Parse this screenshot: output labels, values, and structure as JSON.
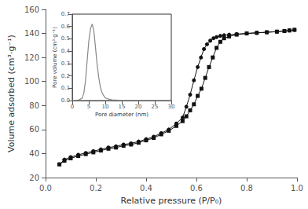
{
  "chart_data": [
    {
      "type": "line",
      "xlabel": "Relative pressure (P/P₀)",
      "ylabel": "Volume adsorbed (cm³·g⁻¹)",
      "xlim": [
        0.0,
        1.0
      ],
      "ylim": [
        20,
        160
      ],
      "xticks": [
        {
          "value": 0.0,
          "label": "0.0"
        },
        0.2,
        0.4,
        0.6,
        0.8,
        {
          "value": 1.0,
          "label": "1.0"
        }
      ],
      "yticks": [
        20,
        40,
        60,
        80,
        100,
        120,
        140,
        160
      ],
      "series": [
        {
          "x": [
            0.055,
            0.075,
            0.1,
            0.13,
            0.16,
            0.19,
            0.22,
            0.25,
            0.28,
            0.31,
            0.34,
            0.37,
            0.4,
            0.43,
            0.46,
            0.49,
            0.52,
            0.545,
            0.56,
            0.575,
            0.59,
            0.605,
            0.618,
            0.63,
            0.642,
            0.655,
            0.668,
            0.68,
            0.695,
            0.71,
            0.73,
            0.76,
            0.8,
            0.84,
            0.88,
            0.92,
            0.95,
            0.97,
            0.99
          ],
          "values": [
            31,
            35,
            37,
            39,
            40.5,
            42,
            43.5,
            45,
            46,
            47.5,
            48.5,
            50,
            52,
            54,
            57,
            60,
            65,
            70,
            79,
            89,
            101,
            112,
            120,
            127,
            131,
            134,
            136,
            137,
            138,
            138.5,
            139,
            139.5,
            140,
            140.5,
            141,
            141.5,
            142,
            142.5,
            143
          ],
          "color": "#111111",
          "marker": "circle"
        },
        {
          "x": [
            0.055,
            0.075,
            0.1,
            0.13,
            0.16,
            0.19,
            0.22,
            0.25,
            0.28,
            0.31,
            0.34,
            0.37,
            0.4,
            0.43,
            0.46,
            0.49,
            0.52,
            0.545,
            0.56,
            0.575,
            0.59,
            0.605,
            0.62,
            0.635,
            0.65,
            0.665,
            0.68,
            0.695,
            0.71,
            0.73,
            0.76,
            0.8,
            0.84,
            0.88,
            0.92,
            0.95,
            0.97,
            0.99
          ],
          "values": [
            31,
            34,
            36,
            38,
            39.5,
            41,
            42.5,
            44,
            45,
            46.5,
            47.5,
            49,
            51,
            53,
            56,
            59,
            63,
            67,
            71,
            76,
            81,
            88,
            94,
            103,
            112,
            120,
            128,
            133,
            136,
            137.5,
            139,
            140,
            140.5,
            141,
            141.5,
            142,
            142.5,
            143
          ],
          "color": "#111111",
          "marker": "square"
        }
      ]
    },
    {
      "type": "line",
      "xlabel": "Pore diameter (nm)",
      "ylabel": "Pore volume (cm³·g⁻¹)",
      "xlim": [
        0,
        30
      ],
      "ylim": [
        0.0,
        0.7
      ],
      "xticks": [
        0,
        5,
        10,
        15,
        20,
        25,
        30
      ],
      "yticks": [
        {
          "value": 0.0,
          "label": "0.0"
        },
        0.1,
        0.2,
        0.3,
        0.4,
        0.5,
        0.6,
        0.7
      ],
      "x": [
        0,
        1,
        2,
        3,
        3.5,
        4.0,
        4.5,
        5.0,
        5.5,
        6.0,
        6.5,
        7.0,
        7.5,
        8.0,
        8.5,
        9.0,
        9.5,
        10.0,
        11.0,
        12.0,
        14.0,
        16.0,
        18.0,
        20.0,
        25.0,
        30.0
      ],
      "series": [
        {
          "values": [
            0,
            0.0,
            0.005,
            0.02,
            0.06,
            0.16,
            0.32,
            0.48,
            0.58,
            0.62,
            0.57,
            0.44,
            0.3,
            0.19,
            0.11,
            0.065,
            0.04,
            0.022,
            0.012,
            0.006,
            0.003,
            0.001,
            0.001,
            0.0,
            0.0,
            0.0
          ],
          "color": "#888888"
        }
      ]
    }
  ]
}
